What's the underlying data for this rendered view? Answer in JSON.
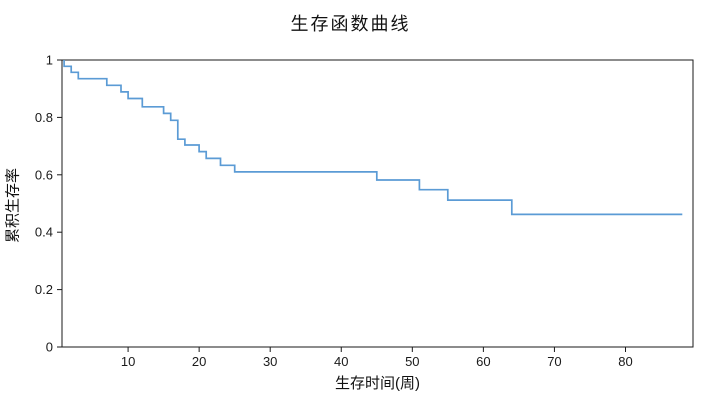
{
  "figure": {
    "title": "生存函数曲线",
    "xlabel": "生存时间(周)",
    "ylabel": "累积生存率"
  },
  "chart_data": {
    "type": "line",
    "subtype": "kaplan-meier-step-curve",
    "title": "生存函数曲线",
    "xlabel": "生存时间(周)",
    "ylabel": "累积生存率",
    "xlim": [
      0.7,
      89.5
    ],
    "ylim": [
      0,
      1
    ],
    "x_ticks": [
      10,
      20,
      30,
      40,
      50,
      60,
      70,
      80
    ],
    "y_ticks": [
      0,
      0.2,
      0.4,
      0.6,
      0.8,
      1
    ],
    "y_tick_labels": [
      "0",
      "0.2",
      "0.4",
      "0.6",
      "0.8",
      "1"
    ],
    "grid": false,
    "legend": false,
    "frame": true,
    "line_color": "#5B9BD5",
    "axis_color": "#1a1a1a",
    "series": [
      {
        "name": "生存函数",
        "start": [
          1,
          1.0
        ],
        "steps": [
          [
            1,
            0.978
          ],
          [
            2,
            0.957
          ],
          [
            3,
            0.935
          ],
          [
            7,
            0.912
          ],
          [
            9,
            0.889
          ],
          [
            10,
            0.866
          ],
          [
            12,
            0.837
          ],
          [
            15,
            0.814
          ],
          [
            16,
            0.79
          ],
          [
            17,
            0.724
          ],
          [
            18,
            0.704
          ],
          [
            20,
            0.681
          ],
          [
            21,
            0.657
          ],
          [
            23,
            0.633
          ],
          [
            25,
            0.61
          ],
          [
            45,
            0.582
          ],
          [
            51,
            0.548
          ],
          [
            55,
            0.512
          ],
          [
            64,
            0.462
          ]
        ],
        "end_time": 88
      }
    ]
  }
}
